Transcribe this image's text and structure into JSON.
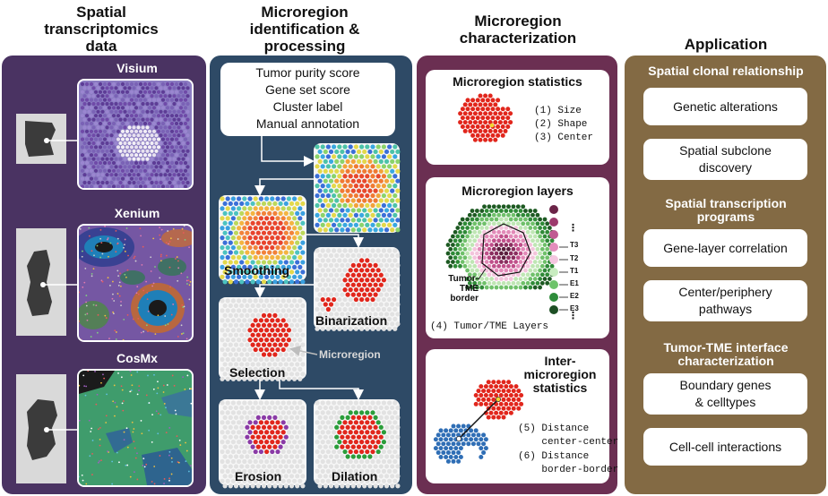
{
  "columns": {
    "data": "Spatial\ntranscriptomics\ndata",
    "micro": "Microregion\nidentification &\nprocessing",
    "char": "Microregion\ncharacterization",
    "app": "Application"
  },
  "platforms": [
    "Visium",
    "Xenium",
    "CosMx"
  ],
  "inputs": [
    "Tumor purity score",
    "Gene set score",
    "Cluster label",
    "Manual annotation"
  ],
  "steps": {
    "smoothing": "Smoothing",
    "binarization": "Binarization",
    "microregion": "Microregion",
    "selection": "Selection",
    "erosion": "Erosion",
    "dilation": "Dilation"
  },
  "stats": {
    "title": "Microregion statistics",
    "items": [
      "(1) Size",
      "(2) Shape",
      "(3) Center"
    ]
  },
  "layers": {
    "title": "Microregion layers",
    "border_label": "Tumor-\nTME\nborder",
    "layer_labels": [
      "T3",
      "T2",
      "T1",
      "E1",
      "E2",
      "E3"
    ],
    "dots_top": "⋮",
    "dots_bottom": "⋮",
    "caption": "(4) Tumor/TME Layers"
  },
  "inter": {
    "title": "Inter-\nmicroregion\nstatistics",
    "items": [
      "(5) Distance\n    center-center",
      "(6) Distance\n    border-border"
    ]
  },
  "application": {
    "sections": [
      {
        "title": "Spatial clonal relationship",
        "items": [
          "Genetic alterations",
          "Spatial subclone\ndiscovery"
        ]
      },
      {
        "title": "Spatial transcription\nprograms",
        "items": [
          "Gene-layer correlation",
          "Center/periphery\npathways"
        ]
      },
      {
        "title": "Tumor-TME interface\ncharacterization",
        "items": [
          "Boundary genes\n& celltypes",
          "Cell-cell interactions"
        ]
      }
    ]
  },
  "colors": {
    "col1_bg": "#4a3362",
    "col2_bg": "#2e4a66",
    "col3_bg": "#6b2f52",
    "col4_bg": "#836a44",
    "red": "#e1261c",
    "blue": "#2f6eb5",
    "green": "#2a9d3a",
    "purple": "#8a3aa6"
  }
}
